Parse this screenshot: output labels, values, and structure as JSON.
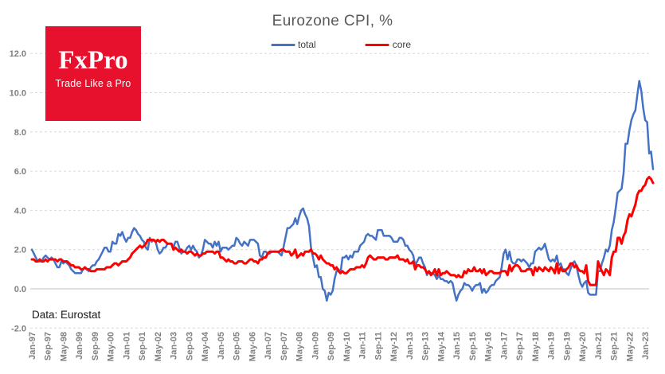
{
  "logo": {
    "brand": "FxPro",
    "tagline": "Trade Like a Pro",
    "bg_color": "#e8112d",
    "text_color": "#ffffff"
  },
  "source_note": "Data: Eurostat",
  "chart_data": {
    "type": "line",
    "title": "Eurozone CPI, %",
    "xlabel": "",
    "ylabel": "",
    "x_frequency": "monthly",
    "x_range": "Jan-1997 to May-2023",
    "x_tick_every": 8,
    "x_tick_labels": [
      "Jan-97",
      "Sep-97",
      "May-98",
      "Jan-99",
      "Sep-99",
      "May-00",
      "Jan-01",
      "Sep-01",
      "May-02",
      "Jan-03",
      "Sep-03",
      "May-04",
      "Jan-05",
      "Sep-05",
      "May-06",
      "Jan-07",
      "Sep-07",
      "May-08",
      "Jan-09",
      "Sep-09",
      "May-10",
      "Jan-11",
      "Sep-11",
      "May-12",
      "Jan-13",
      "Sep-13",
      "May-14",
      "Jan-15",
      "Sep-15",
      "May-16",
      "Jan-17",
      "Sep-17",
      "May-18",
      "Jan-19",
      "Sep-19",
      "May-20",
      "Jan-21",
      "Sep-21",
      "May-22",
      "Jan-23"
    ],
    "y_tick_labels": [
      "12.0",
      "10.0",
      "8.0",
      "6.0",
      "4.0",
      "2.0",
      "0.0",
      "-2.0"
    ],
    "ylim": [
      -2,
      12
    ],
    "grid": "horizontal-dashed, zero-line-solid",
    "legend_position": "top-center",
    "tick_label_color": "#7f7f7f",
    "title_color": "#595959",
    "series": [
      {
        "name": "total",
        "color": "#4472C4",
        "values": [
          2.0,
          1.8,
          1.6,
          1.4,
          1.4,
          1.4,
          1.6,
          1.7,
          1.6,
          1.5,
          1.6,
          1.5,
          1.3,
          1.1,
          1.1,
          1.4,
          1.3,
          1.4,
          1.3,
          1.2,
          1.0,
          0.9,
          0.8,
          0.8,
          0.8,
          0.8,
          1.0,
          1.1,
          1.0,
          0.9,
          1.1,
          1.2,
          1.2,
          1.4,
          1.5,
          1.7,
          1.9,
          2.1,
          2.1,
          1.9,
          1.9,
          2.4,
          2.3,
          2.3,
          2.8,
          2.7,
          2.9,
          2.6,
          2.4,
          2.6,
          2.6,
          2.9,
          3.1,
          3.0,
          2.8,
          2.7,
          2.5,
          2.4,
          2.1,
          2.0,
          2.6,
          2.4,
          2.5,
          2.4,
          2.0,
          1.8,
          1.9,
          2.1,
          2.1,
          2.3,
          2.3,
          2.3,
          2.1,
          2.4,
          2.4,
          2.1,
          1.8,
          1.9,
          1.9,
          2.1,
          2.2,
          2.0,
          2.2,
          2.0,
          1.9,
          1.6,
          1.7,
          2.0,
          2.5,
          2.4,
          2.3,
          2.3,
          2.1,
          2.4,
          2.2,
          2.4,
          1.9,
          2.1,
          2.1,
          2.1,
          2.0,
          2.1,
          2.2,
          2.2,
          2.6,
          2.5,
          2.3,
          2.2,
          2.4,
          2.3,
          2.2,
          2.5,
          2.5,
          2.5,
          2.4,
          2.3,
          1.7,
          1.6,
          1.9,
          1.9,
          1.8,
          1.8,
          1.9,
          1.9,
          1.9,
          1.9,
          1.8,
          1.7,
          2.1,
          2.6,
          3.1,
          3.1,
          3.2,
          3.3,
          3.6,
          3.3,
          3.7,
          4.0,
          4.1,
          3.8,
          3.6,
          3.2,
          2.1,
          1.6,
          1.1,
          1.2,
          0.6,
          0.6,
          0.0,
          -0.1,
          -0.6,
          -0.2,
          -0.3,
          -0.1,
          0.5,
          0.9,
          1.0,
          0.8,
          1.6,
          1.6,
          1.7,
          1.5,
          1.7,
          1.6,
          1.9,
          1.9,
          1.9,
          2.2,
          2.3,
          2.4,
          2.7,
          2.8,
          2.7,
          2.7,
          2.6,
          2.5,
          3.0,
          3.0,
          3.0,
          2.7,
          2.7,
          2.7,
          2.7,
          2.6,
          2.4,
          2.4,
          2.4,
          2.6,
          2.6,
          2.5,
          2.2,
          2.2,
          2.0,
          1.9,
          1.7,
          1.2,
          1.4,
          1.6,
          1.6,
          1.3,
          1.1,
          0.7,
          0.9,
          0.8,
          0.8,
          0.7,
          0.5,
          0.7,
          0.5,
          0.5,
          0.4,
          0.4,
          0.3,
          0.4,
          0.3,
          -0.2,
          -0.6,
          -0.3,
          -0.1,
          0.0,
          0.3,
          0.2,
          0.2,
          0.1,
          -0.1,
          0.1,
          0.2,
          0.2,
          0.3,
          -0.2,
          0.0,
          -0.2,
          -0.1,
          0.1,
          0.2,
          0.2,
          0.4,
          0.5,
          0.6,
          1.1,
          1.8,
          2.0,
          1.5,
          1.9,
          1.4,
          1.3,
          1.3,
          1.5,
          1.5,
          1.4,
          1.5,
          1.4,
          1.3,
          1.1,
          1.3,
          1.3,
          1.9,
          2.0,
          2.1,
          2.0,
          2.1,
          2.3,
          1.9,
          1.5,
          1.4,
          1.5,
          1.4,
          1.7,
          1.2,
          1.3,
          1.0,
          1.0,
          0.8,
          0.7,
          1.0,
          1.3,
          1.4,
          1.2,
          0.7,
          0.3,
          0.1,
          0.3,
          0.4,
          -0.2,
          -0.3,
          -0.3,
          -0.3,
          -0.3,
          0.9,
          0.9,
          1.3,
          1.6,
          2.0,
          1.9,
          2.2,
          3.0,
          3.4,
          4.1,
          4.9,
          5.0,
          5.1,
          5.9,
          7.4,
          7.4,
          8.1,
          8.6,
          8.9,
          9.1,
          9.9,
          10.6,
          10.1,
          9.2,
          8.6,
          8.5,
          6.9,
          7.0,
          6.1
        ]
      },
      {
        "name": "core",
        "color": "#FF0000",
        "values": [
          1.5,
          1.5,
          1.4,
          1.4,
          1.5,
          1.4,
          1.4,
          1.5,
          1.4,
          1.5,
          1.5,
          1.5,
          1.5,
          1.4,
          1.5,
          1.5,
          1.4,
          1.4,
          1.4,
          1.3,
          1.2,
          1.2,
          1.1,
          1.1,
          1.1,
          1.0,
          1.0,
          1.1,
          1.0,
          1.0,
          0.9,
          0.9,
          0.9,
          1.0,
          1.0,
          1.0,
          1.0,
          1.0,
          1.1,
          1.1,
          1.1,
          1.2,
          1.3,
          1.3,
          1.2,
          1.3,
          1.4,
          1.4,
          1.4,
          1.5,
          1.6,
          1.8,
          1.9,
          2.0,
          2.1,
          2.2,
          2.1,
          2.2,
          2.3,
          2.5,
          2.5,
          2.5,
          2.5,
          2.4,
          2.5,
          2.4,
          2.5,
          2.5,
          2.4,
          2.3,
          2.3,
          2.3,
          2.0,
          2.1,
          2.0,
          1.9,
          2.0,
          1.9,
          1.9,
          1.8,
          1.9,
          1.9,
          1.8,
          1.7,
          1.8,
          1.7,
          1.7,
          1.8,
          1.8,
          1.9,
          1.9,
          1.9,
          1.9,
          1.8,
          1.9,
          1.9,
          1.6,
          1.6,
          1.5,
          1.4,
          1.5,
          1.4,
          1.4,
          1.3,
          1.3,
          1.4,
          1.4,
          1.4,
          1.3,
          1.3,
          1.4,
          1.5,
          1.5,
          1.4,
          1.4,
          1.3,
          1.5,
          1.5,
          1.6,
          1.6,
          1.8,
          1.9,
          1.9,
          1.9,
          1.9,
          1.9,
          1.9,
          2.0,
          2.0,
          1.9,
          1.9,
          1.9,
          1.7,
          1.8,
          2.0,
          1.6,
          1.7,
          1.8,
          1.7,
          1.9,
          1.9,
          1.9,
          2.0,
          1.8,
          1.8,
          1.7,
          1.5,
          1.7,
          1.5,
          1.4,
          1.3,
          1.3,
          1.2,
          1.2,
          1.0,
          1.1,
          0.9,
          0.8,
          0.9,
          0.8,
          0.8,
          0.9,
          1.0,
          1.0,
          1.0,
          1.1,
          1.1,
          1.1,
          1.2,
          1.1,
          1.3,
          1.6,
          1.7,
          1.6,
          1.5,
          1.5,
          1.6,
          1.6,
          1.6,
          1.6,
          1.5,
          1.5,
          1.6,
          1.6,
          1.6,
          1.6,
          1.7,
          1.5,
          1.5,
          1.5,
          1.4,
          1.5,
          1.3,
          1.3,
          1.4,
          1.0,
          1.2,
          1.2,
          1.1,
          1.1,
          1.0,
          0.8,
          0.9,
          0.7,
          0.8,
          1.0,
          0.7,
          1.0,
          0.7,
          0.8,
          0.8,
          0.9,
          0.8,
          0.7,
          0.7,
          0.7,
          0.6,
          0.7,
          0.6,
          0.6,
          0.9,
          0.8,
          1.0,
          0.9,
          0.9,
          1.1,
          0.9,
          0.9,
          1.0,
          0.8,
          1.0,
          0.7,
          0.8,
          0.9,
          0.9,
          0.8,
          0.8,
          0.8,
          0.8,
          0.9,
          0.9,
          0.9,
          0.7,
          1.2,
          0.9,
          1.1,
          1.2,
          1.2,
          1.1,
          0.9,
          0.9,
          0.9,
          1.0,
          1.0,
          1.0,
          0.7,
          1.1,
          0.9,
          1.1,
          1.0,
          0.9,
          1.1,
          1.0,
          0.9,
          1.1,
          1.0,
          0.8,
          1.3,
          0.8,
          1.1,
          0.9,
          0.9,
          1.0,
          1.1,
          1.3,
          1.3,
          1.1,
          1.2,
          1.0,
          0.9,
          0.9,
          0.8,
          1.2,
          0.4,
          0.2,
          0.2,
          0.2,
          0.2,
          1.4,
          1.1,
          0.9,
          0.7,
          1.0,
          0.9,
          0.7,
          1.6,
          1.9,
          1.9,
          2.6,
          2.6,
          2.3,
          2.7,
          2.9,
          3.5,
          3.8,
          3.7,
          4.0,
          4.3,
          4.8,
          5.0,
          5.0,
          5.2,
          5.3,
          5.6,
          5.7,
          5.6,
          5.4
        ]
      }
    ]
  }
}
